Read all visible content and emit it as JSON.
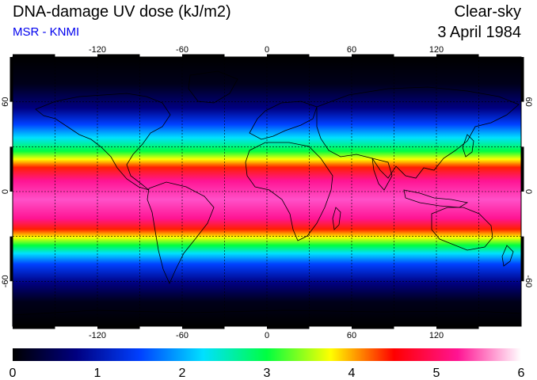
{
  "header": {
    "title": "DNA-damage UV dose (kJ/m2)",
    "credit": "MSR - KNMI",
    "condition": "Clear-sky",
    "date": "3 April 1984"
  },
  "map": {
    "lon_ticks": [
      "-120",
      "-60",
      "0",
      "60",
      "120"
    ],
    "lat_ticks": [
      "60",
      "0",
      "-60"
    ],
    "lon_values": [
      -120,
      -60,
      0,
      60,
      120
    ],
    "lat_values": [
      60,
      0,
      -60
    ],
    "grid_lon_step": 30,
    "grid_lat_step": 30,
    "lon_range": [
      -180,
      180
    ],
    "lat_range": [
      -90,
      90
    ]
  },
  "colorbar": {
    "labels": [
      "0",
      "1",
      "2",
      "3",
      "4",
      "5",
      "6"
    ],
    "min": 0,
    "max": 6,
    "colors": [
      "#000000",
      "#000080",
      "#0040ff",
      "#00e0ff",
      "#00ff40",
      "#ffff00",
      "#ff0000",
      "#ff1493",
      "#ffffff"
    ]
  }
}
